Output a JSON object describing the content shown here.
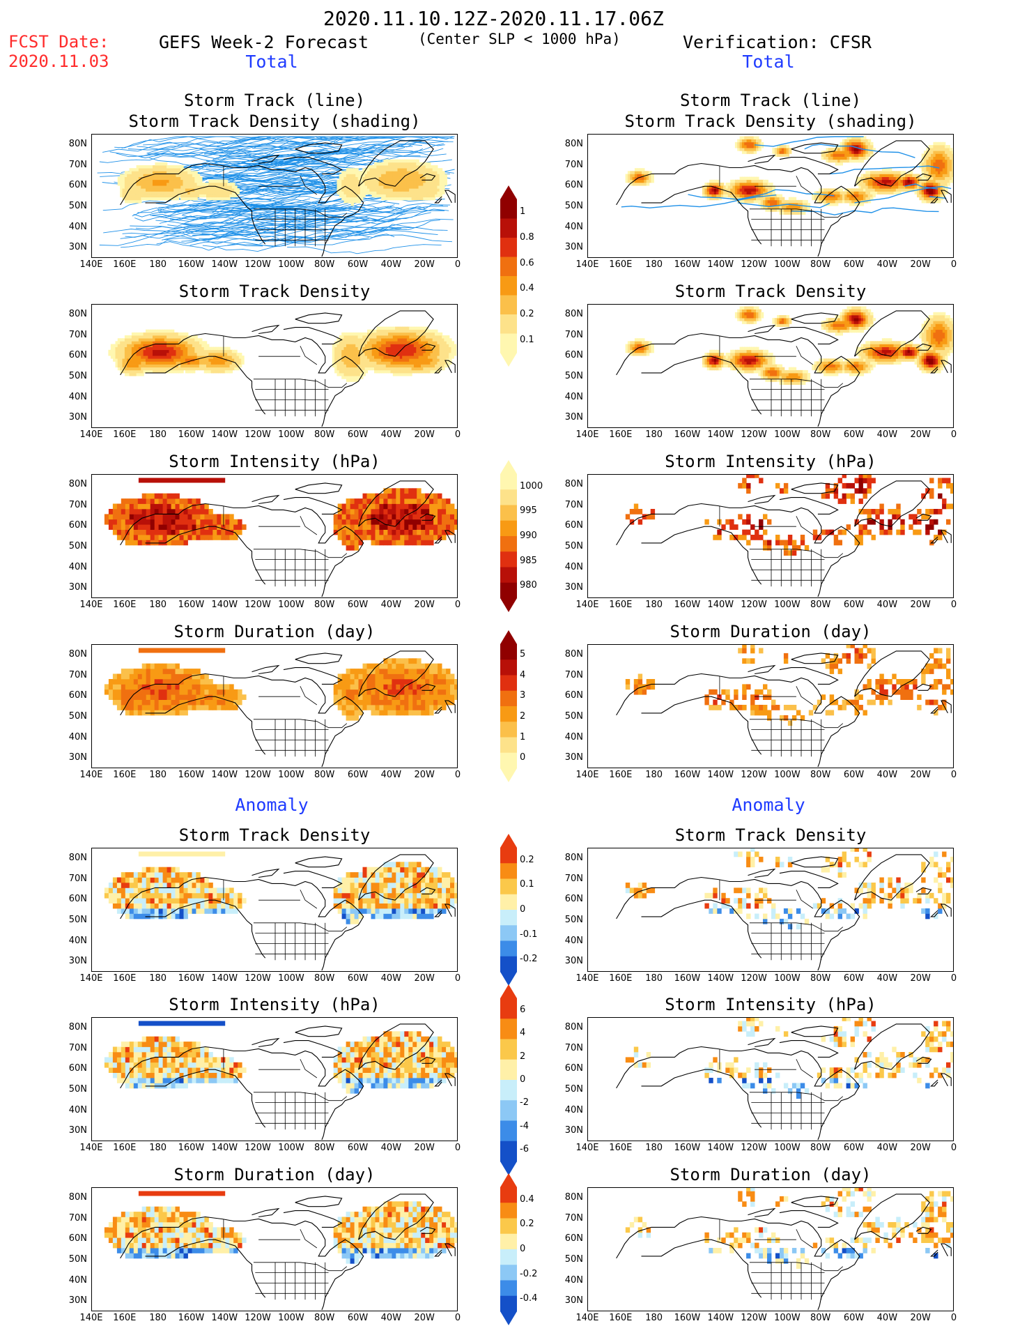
{
  "header": {
    "period": "2020.11.10.12Z-2020.11.17.06Z",
    "fcst_label": "FCST Date:",
    "fcst_date": "2020.11.03",
    "left_title": "GEFS Week-2 Forecast",
    "criterion": "(Center SLP < 1000 hPa)",
    "right_title": "Verification: CFSR",
    "total_left": "Total",
    "total_right": "Total",
    "anomaly_left": "Anomaly",
    "anomaly_right": "Anomaly"
  },
  "panel_titles": {
    "track_line": "Storm Track (line)",
    "track_density_shading": "Storm Track Density (shading)",
    "track_density": "Storm Track Density",
    "intensity": "Storm Intensity (hPa)",
    "duration": "Storm Duration (day)"
  },
  "axes": {
    "y_labels": [
      "80N",
      "70N",
      "60N",
      "50N",
      "40N",
      "30N"
    ],
    "x_labels": [
      "140E",
      "160E",
      "180",
      "160W",
      "140W",
      "120W",
      "100W",
      "80W",
      "60W",
      "40W",
      "20W",
      "0"
    ]
  },
  "colorbars": {
    "density": [
      "1",
      "0.8",
      "0.6",
      "0.4",
      "0.2",
      "0.1"
    ],
    "intensity": [
      "1000",
      "995",
      "990",
      "985",
      "980"
    ],
    "duration": [
      "5",
      "4",
      "3",
      "2",
      "1",
      "0"
    ],
    "density_anom": [
      "0.2",
      "0.1",
      "0",
      "-0.1",
      "-0.2"
    ],
    "intensity_anom": [
      "6",
      "4",
      "2",
      "0",
      "-2",
      "-4",
      "-6"
    ],
    "duration_anom": [
      "0.4",
      "0.2",
      "0",
      "-0.2",
      "-0.4"
    ]
  },
  "colors": {
    "track_line": "#1e90e8",
    "warm": [
      "#fff7b0",
      "#fde28a",
      "#fbc04a",
      "#f89a14",
      "#f07010",
      "#e03010",
      "#b81008",
      "#900000"
    ],
    "diverging": [
      "#1450c8",
      "#3c8ce8",
      "#8cc8f5",
      "#c8eefa",
      "#fff0a8",
      "#fbc84a",
      "#f88c14",
      "#e83c10"
    ]
  }
}
